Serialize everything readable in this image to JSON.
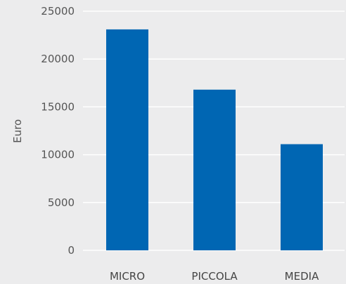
{
  "chart_data": {
    "type": "bar",
    "title": "",
    "xlabel": "",
    "ylabel": "Euro",
    "categories": [
      "MICRO",
      "PICCOLA",
      "MEDIA"
    ],
    "values": [
      23100,
      16800,
      11100
    ],
    "ylim": [
      0,
      25000
    ],
    "yticks": [
      "0",
      "5000",
      "10000",
      "15000",
      "20000",
      "25000"
    ],
    "grid": true,
    "bar_color": "#0066b3",
    "background_color": "#ececed",
    "grid_color": "#ffffff"
  }
}
